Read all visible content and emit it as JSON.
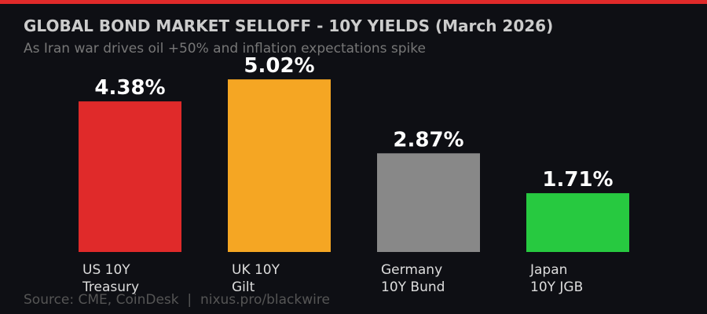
{
  "chart_data": {
    "type": "bar",
    "title": "GLOBAL BOND MARKET SELLOFF - 10Y YIELDS (March 2026)",
    "subtitle": "As Iran war drives oil +50% and inflation expectations spike",
    "categories": [
      [
        "US 10Y",
        "Treasury"
      ],
      [
        "UK 10Y",
        "Gilt"
      ],
      [
        "Germany",
        "10Y Bund"
      ],
      [
        "Japan",
        "10Y JGB"
      ]
    ],
    "values": [
      4.38,
      5.02,
      2.87,
      1.71
    ],
    "value_labels": [
      "4.38%",
      "5.02%",
      "2.87%",
      "1.71%"
    ],
    "colors": [
      "#e02a2a",
      "#f5a623",
      "#888888",
      "#27c940"
    ],
    "source": "Source: CME, CoinDesk  |  nixus.pro/blackwire"
  }
}
